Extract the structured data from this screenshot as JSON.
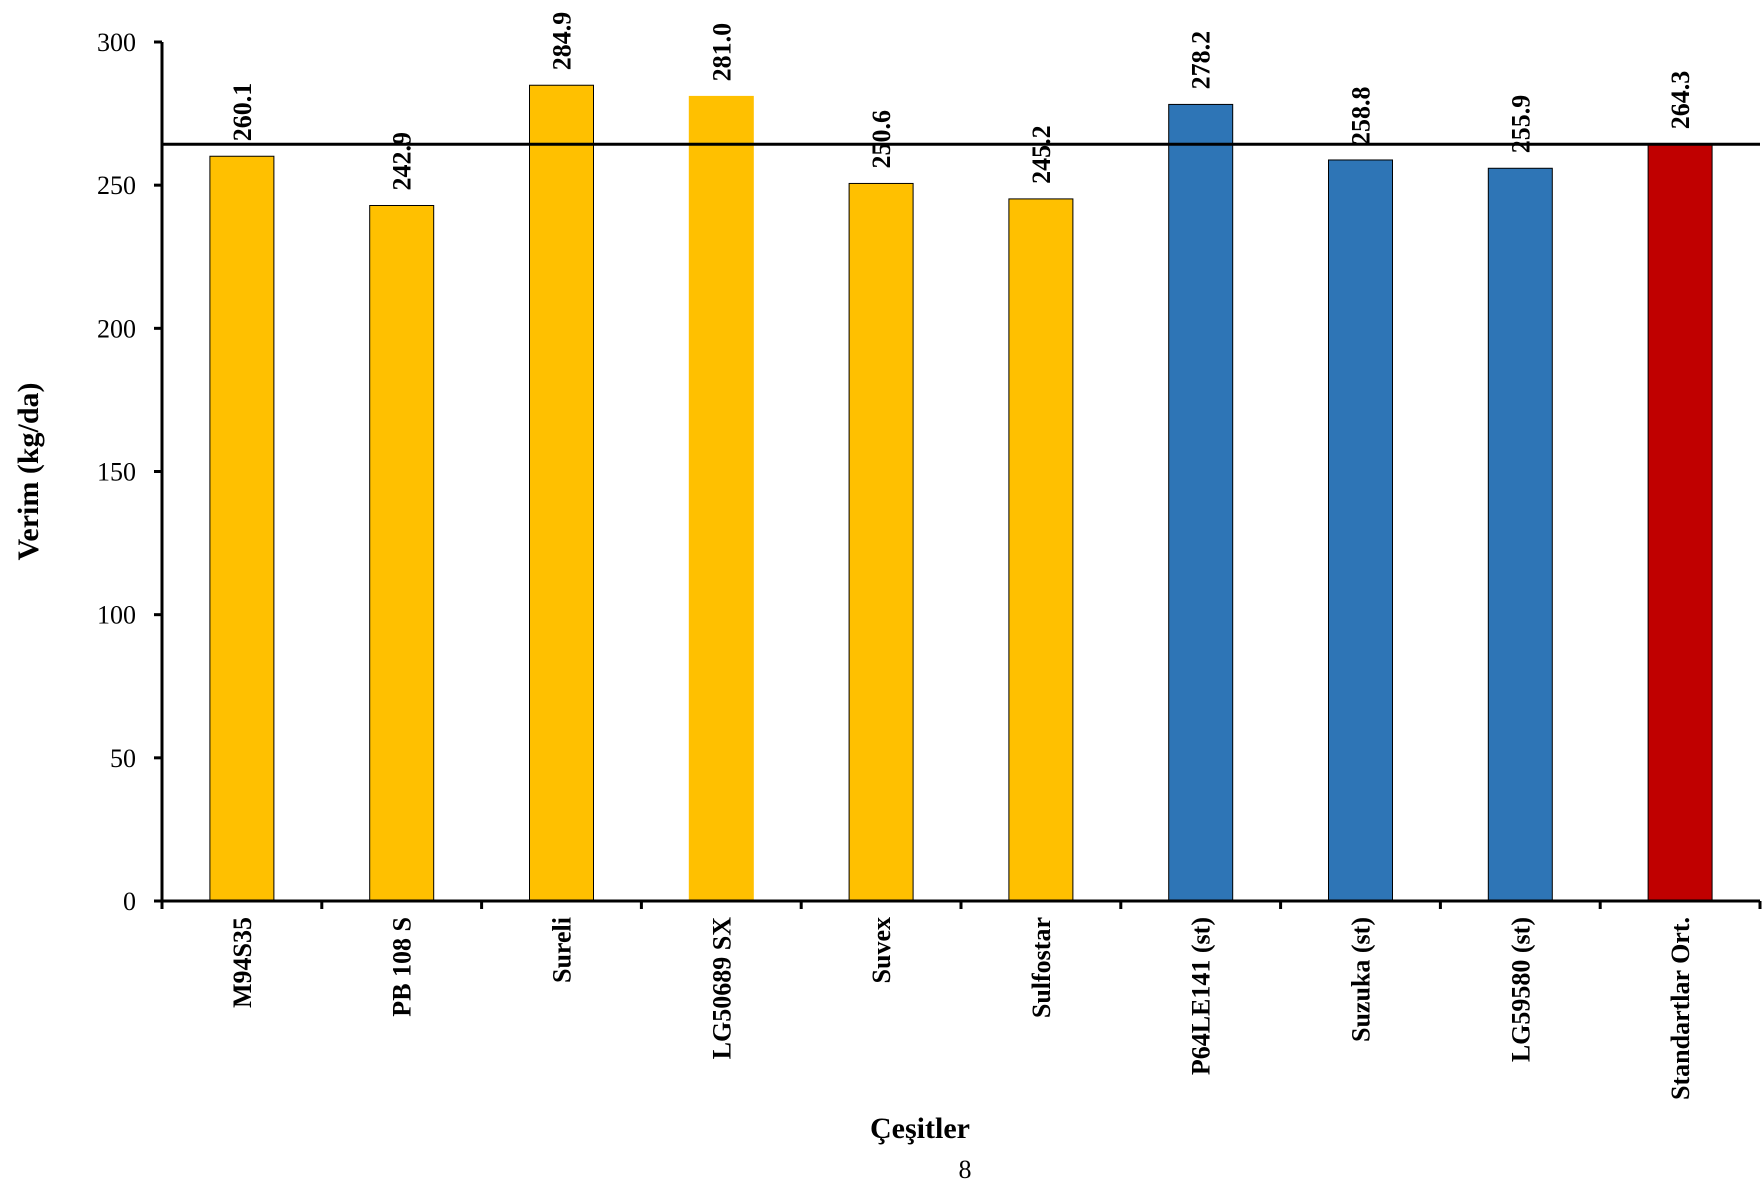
{
  "chart_data": {
    "type": "bar",
    "categories": [
      "M94S35",
      "PB 108 S",
      "Sureli",
      "LG50689 SX",
      "Suvex",
      "Sulfostar",
      "P64LE141 (st)",
      "Suzuka (st)",
      "LG59580 (st)",
      "Standartlar Ort."
    ],
    "values": [
      260.1,
      242.9,
      284.9,
      281.0,
      250.6,
      245.2,
      278.2,
      258.8,
      255.9,
      264.3
    ],
    "data_labels": [
      "260.1",
      "242.9",
      "284.9",
      "281.0",
      "250.6",
      "245.2",
      "278.2",
      "258.8",
      "255.9",
      "264.3"
    ],
    "bar_colors": [
      "#FFC000",
      "#FFC000",
      "#FFC000",
      "#FFC000",
      "#FFC000",
      "#FFC000",
      "#2E75B6",
      "#2E75B6",
      "#2E75B6",
      "#C00000"
    ],
    "reference_line": 264.3,
    "title": "",
    "xlabel": "Çeşitler",
    "ylabel": "Verim (kg/da)",
    "ylim": [
      0,
      300
    ],
    "yticks": [
      0,
      50,
      100,
      150,
      200,
      250,
      300
    ],
    "grid": false,
    "legend": "none"
  },
  "page_number": "8"
}
